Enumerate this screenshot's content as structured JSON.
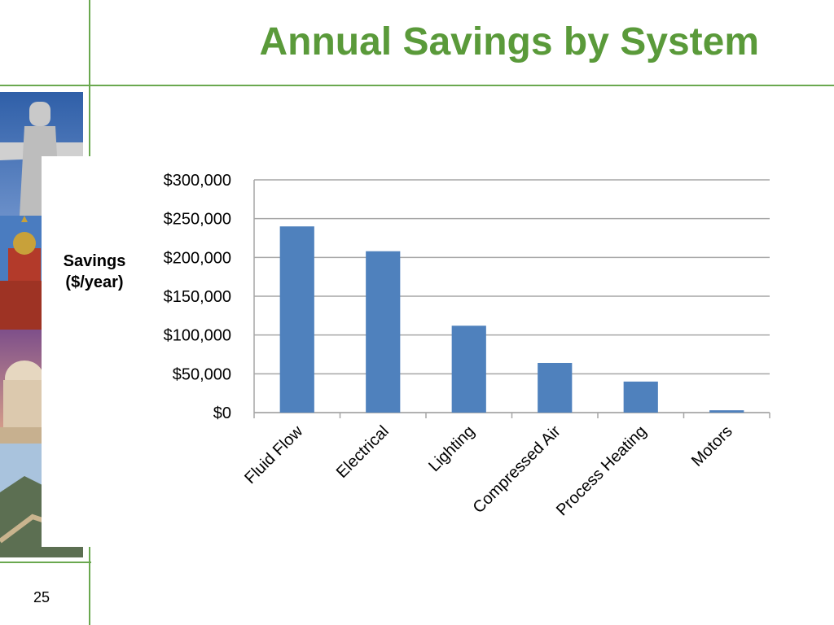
{
  "slide": {
    "title": "Annual Savings by System",
    "page_number": "25"
  },
  "colors": {
    "accent_green": "#6aa84f",
    "title_green": "#5a9a3a",
    "bar_blue": "#4f81bd"
  },
  "photos": [
    "christ-the-redeemer-photo",
    "st-basils-cathedral-photo",
    "taj-mahal-photo",
    "great-wall-photo"
  ],
  "chart_data": {
    "type": "bar",
    "title": "",
    "ylabel": "Savings ($/year)",
    "xlabel": "",
    "categories": [
      "Fluid Flow",
      "Electrical",
      "Lighting",
      "Compressed Air",
      "Process Heating",
      "Motors"
    ],
    "values": [
      240000,
      208000,
      112000,
      64000,
      40000,
      3000
    ],
    "ylim": [
      0,
      300000
    ],
    "yticks": [
      0,
      50000,
      100000,
      150000,
      200000,
      250000,
      300000
    ],
    "ytick_labels": [
      "$0",
      "$50,000",
      "$100,000",
      "$150,000",
      "$200,000",
      "$250,000",
      "$300,000"
    ],
    "grid": true,
    "legend": "none"
  }
}
